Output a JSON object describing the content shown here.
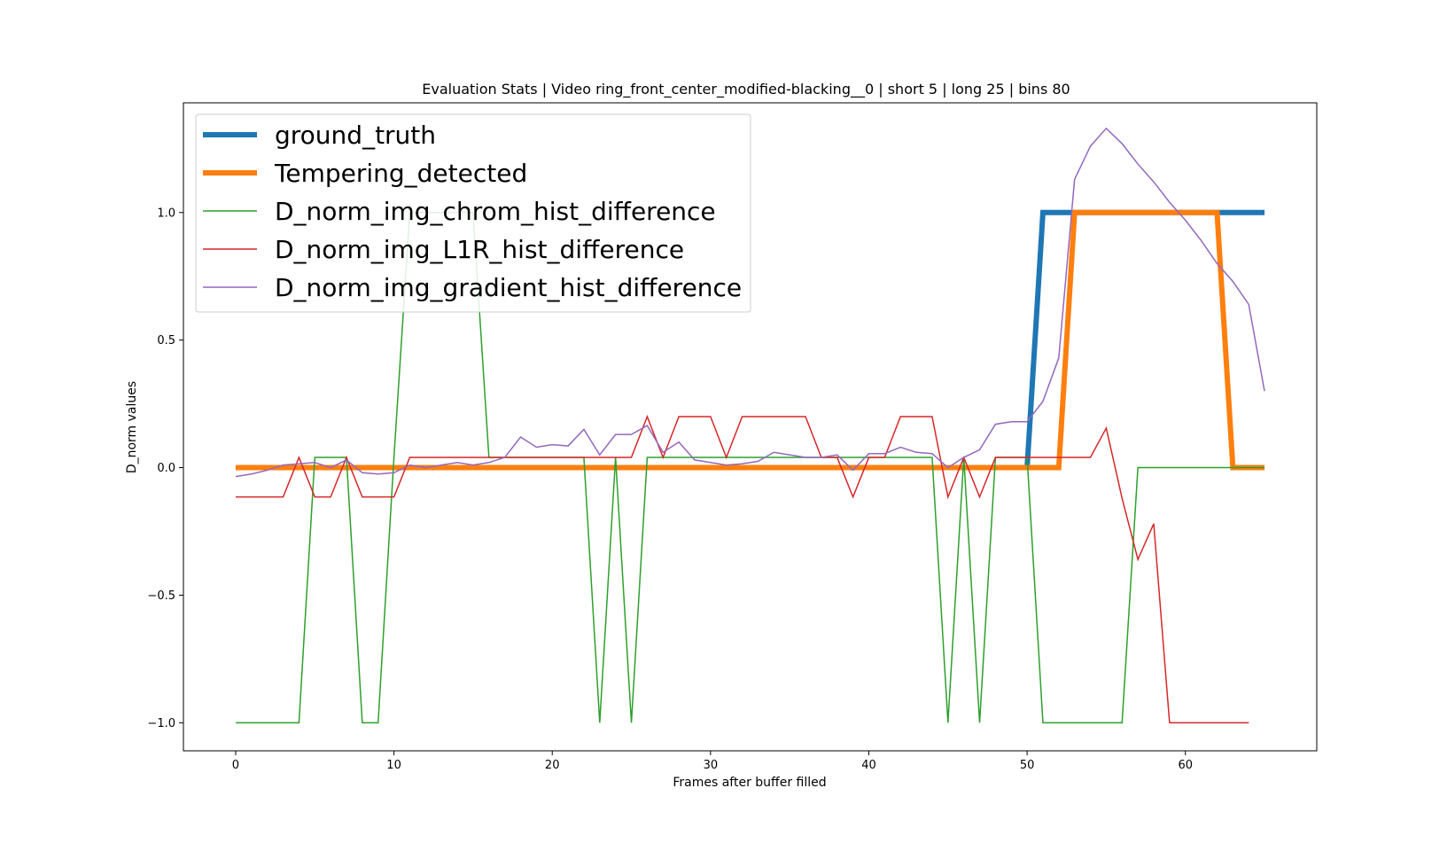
{
  "chart_data": {
    "type": "line",
    "title": "Evaluation Stats | Video ring_front_center_modified-blacking__0 | short 5 | long 25 | bins 80",
    "xlabel": "Frames after buffer filled",
    "ylabel": "D_norm values",
    "xlim": [
      -3.3,
      68.3
    ],
    "ylim": [
      -1.11,
      1.43
    ],
    "xticks": [
      0,
      10,
      20,
      30,
      40,
      50,
      60
    ],
    "xtick_labels": [
      "0",
      "10",
      "20",
      "30",
      "40",
      "50",
      "60"
    ],
    "yticks": [
      -1.0,
      -0.5,
      0.0,
      0.5,
      1.0
    ],
    "ytick_labels": [
      "−1.0",
      "−0.5",
      "0.0",
      "0.5",
      "1.0"
    ],
    "grid": false,
    "legend_position": "upper-left",
    "series": [
      {
        "name": "ground_truth",
        "color": "#1f77b4",
        "width": 6,
        "points": [
          [
            0,
            0
          ],
          [
            50,
            0
          ],
          [
            51,
            1
          ],
          [
            65,
            1
          ]
        ]
      },
      {
        "name": "Tempering_detected",
        "color": "#ff7f0e",
        "width": 6,
        "points": [
          [
            0,
            0
          ],
          [
            52,
            0
          ],
          [
            53,
            1
          ],
          [
            62,
            1
          ],
          [
            63,
            0
          ],
          [
            65,
            0
          ]
        ]
      },
      {
        "name": "D_norm_img_chrom_hist_difference",
        "color": "#2ca02c",
        "width": 1.5,
        "points": [
          [
            0,
            -1
          ],
          [
            1,
            -1
          ],
          [
            2,
            -1
          ],
          [
            3,
            -1
          ],
          [
            4,
            -1
          ],
          [
            5,
            0.04
          ],
          [
            6,
            0.04
          ],
          [
            7,
            0.04
          ],
          [
            8,
            -1
          ],
          [
            9,
            -1
          ],
          [
            10,
            0.04
          ],
          [
            11,
            1
          ],
          [
            12,
            1
          ],
          [
            13,
            1
          ],
          [
            14,
            1
          ],
          [
            15,
            1
          ],
          [
            16,
            0.04
          ],
          [
            17,
            0.04
          ],
          [
            18,
            0.04
          ],
          [
            19,
            0.04
          ],
          [
            20,
            0.04
          ],
          [
            21,
            0.04
          ],
          [
            22,
            0.04
          ],
          [
            23,
            -1
          ],
          [
            24,
            0.04
          ],
          [
            25,
            -1
          ],
          [
            26,
            0.04
          ],
          [
            27,
            0.04
          ],
          [
            28,
            0.04
          ],
          [
            29,
            0.04
          ],
          [
            30,
            0.04
          ],
          [
            31,
            0.04
          ],
          [
            32,
            0.04
          ],
          [
            33,
            0.04
          ],
          [
            34,
            0.04
          ],
          [
            35,
            0.04
          ],
          [
            36,
            0.04
          ],
          [
            37,
            0.04
          ],
          [
            38,
            0.04
          ],
          [
            39,
            0.04
          ],
          [
            40,
            0.04
          ],
          [
            41,
            0.04
          ],
          [
            42,
            0.04
          ],
          [
            43,
            0.04
          ],
          [
            44,
            0.04
          ],
          [
            45,
            -1
          ],
          [
            46,
            0.04
          ],
          [
            47,
            -1
          ],
          [
            48,
            0.04
          ],
          [
            49,
            0.04
          ],
          [
            50,
            0.04
          ],
          [
            51,
            -1
          ],
          [
            52,
            -1
          ],
          [
            53,
            -1
          ],
          [
            54,
            -1
          ],
          [
            55,
            -1
          ],
          [
            56,
            -1
          ],
          [
            57,
            0
          ],
          [
            58,
            0
          ],
          [
            59,
            0
          ],
          [
            60,
            0
          ],
          [
            61,
            0
          ],
          [
            62,
            0
          ],
          [
            63,
            0
          ],
          [
            64,
            0
          ],
          [
            65,
            0
          ]
        ]
      },
      {
        "name": "D_norm_img_L1R_hist_difference",
        "color": "#d62728",
        "width": 1.5,
        "points": [
          [
            0,
            -0.115
          ],
          [
            1,
            -0.115
          ],
          [
            2,
            -0.115
          ],
          [
            3,
            -0.115
          ],
          [
            4,
            0.04
          ],
          [
            5,
            -0.115
          ],
          [
            6,
            -0.115
          ],
          [
            7,
            0.04
          ],
          [
            8,
            -0.115
          ],
          [
            9,
            -0.115
          ],
          [
            10,
            -0.115
          ],
          [
            11,
            0.04
          ],
          [
            12,
            0.04
          ],
          [
            13,
            0.04
          ],
          [
            14,
            0.04
          ],
          [
            15,
            0.04
          ],
          [
            16,
            0.04
          ],
          [
            17,
            0.04
          ],
          [
            18,
            0.04
          ],
          [
            19,
            0.04
          ],
          [
            20,
            0.04
          ],
          [
            21,
            0.04
          ],
          [
            22,
            0.04
          ],
          [
            23,
            0.04
          ],
          [
            24,
            0.04
          ],
          [
            25,
            0.04
          ],
          [
            26,
            0.2
          ],
          [
            27,
            0.04
          ],
          [
            28,
            0.2
          ],
          [
            29,
            0.2
          ],
          [
            30,
            0.2
          ],
          [
            31,
            0.04
          ],
          [
            32,
            0.2
          ],
          [
            33,
            0.2
          ],
          [
            34,
            0.2
          ],
          [
            35,
            0.2
          ],
          [
            36,
            0.2
          ],
          [
            37,
            0.04
          ],
          [
            38,
            0.04
          ],
          [
            39,
            -0.115
          ],
          [
            40,
            0.04
          ],
          [
            41,
            0.04
          ],
          [
            42,
            0.2
          ],
          [
            43,
            0.2
          ],
          [
            44,
            0.2
          ],
          [
            45,
            -0.115
          ],
          [
            46,
            0.04
          ],
          [
            47,
            -0.115
          ],
          [
            48,
            0.04
          ],
          [
            49,
            0.04
          ],
          [
            50,
            0.04
          ],
          [
            51,
            0.04
          ],
          [
            52,
            0.04
          ],
          [
            53,
            0.04
          ],
          [
            54,
            0.04
          ],
          [
            55,
            0.155
          ],
          [
            56,
            -0.12
          ],
          [
            57,
            -0.36
          ],
          [
            58,
            -0.22
          ],
          [
            59,
            -1
          ],
          [
            60,
            -1
          ],
          [
            61,
            -1
          ],
          [
            62,
            -1
          ],
          [
            63,
            -1
          ],
          [
            64,
            -1
          ]
        ]
      },
      {
        "name": "D_norm_img_gradient_hist_difference",
        "color": "#9467bd",
        "width": 1.5,
        "points": [
          [
            0,
            -0.035
          ],
          [
            1,
            -0.025
          ],
          [
            2,
            -0.01
          ],
          [
            3,
            0.01
          ],
          [
            4,
            0.015
          ],
          [
            5,
            0.02
          ],
          [
            6,
            0
          ],
          [
            7,
            0.03
          ],
          [
            8,
            -0.02
          ],
          [
            9,
            -0.025
          ],
          [
            10,
            -0.02
          ],
          [
            11,
            0.01
          ],
          [
            12,
            0
          ],
          [
            13,
            0.01
          ],
          [
            14,
            0.02
          ],
          [
            15,
            0.01
          ],
          [
            16,
            0.02
          ],
          [
            17,
            0.04
          ],
          [
            18,
            0.12
          ],
          [
            19,
            0.08
          ],
          [
            20,
            0.09
          ],
          [
            21,
            0.085
          ],
          [
            22,
            0.15
          ],
          [
            23,
            0.05
          ],
          [
            24,
            0.13
          ],
          [
            25,
            0.13
          ],
          [
            26,
            0.165
          ],
          [
            27,
            0.06
          ],
          [
            28,
            0.1
          ],
          [
            29,
            0.03
          ],
          [
            30,
            0.02
          ],
          [
            31,
            0.01
          ],
          [
            32,
            0.015
          ],
          [
            33,
            0.025
          ],
          [
            34,
            0.06
          ],
          [
            35,
            0.05
          ],
          [
            36,
            0.04
          ],
          [
            37,
            0.04
          ],
          [
            38,
            0.05
          ],
          [
            39,
            -0.01
          ],
          [
            40,
            0.055
          ],
          [
            41,
            0.055
          ],
          [
            42,
            0.08
          ],
          [
            43,
            0.06
          ],
          [
            44,
            0.055
          ],
          [
            45,
            0
          ],
          [
            46,
            0.04
          ],
          [
            47,
            0.07
          ],
          [
            48,
            0.17
          ],
          [
            49,
            0.18
          ],
          [
            50,
            0.18
          ],
          [
            51,
            0.26
          ],
          [
            52,
            0.43
          ],
          [
            53,
            1.13
          ],
          [
            54,
            1.26
          ],
          [
            55,
            1.33
          ],
          [
            56,
            1.27
          ],
          [
            57,
            1.19
          ],
          [
            58,
            1.12
          ],
          [
            59,
            1.04
          ],
          [
            60,
            0.97
          ],
          [
            61,
            0.89
          ],
          [
            62,
            0.8
          ],
          [
            63,
            0.73
          ],
          [
            64,
            0.64
          ],
          [
            65,
            0.3
          ]
        ]
      }
    ]
  }
}
